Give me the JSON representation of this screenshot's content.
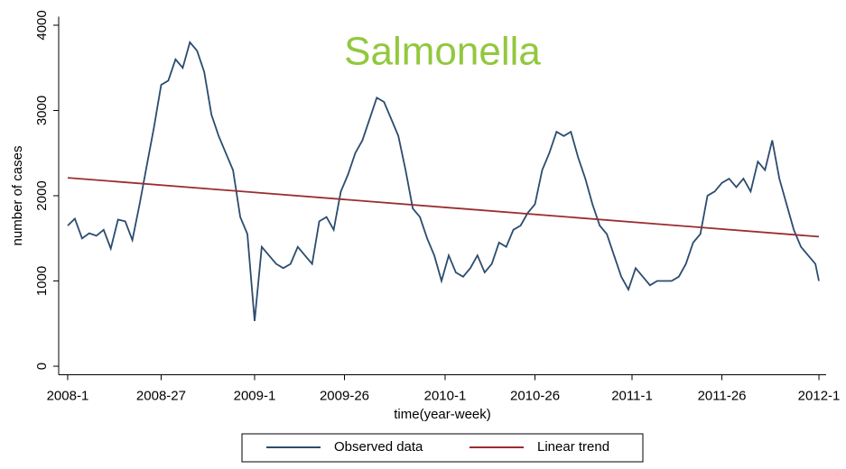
{
  "chart_data": {
    "type": "line",
    "title": "Salmonella",
    "title_color": "#92c83e",
    "xlabel": "time(year-week)",
    "ylabel": "number of cases",
    "xlim": [
      -2.5,
      211
    ],
    "ylim": [
      -100,
      4100
    ],
    "xticks": [
      {
        "value": 0,
        "label": "2008-1"
      },
      {
        "value": 26,
        "label": "2008-27"
      },
      {
        "value": 52,
        "label": "2009-1"
      },
      {
        "value": 77,
        "label": "2009-26"
      },
      {
        "value": 105,
        "label": "2010-1"
      },
      {
        "value": 130,
        "label": "2010-26"
      },
      {
        "value": 157,
        "label": "2011-1"
      },
      {
        "value": 182,
        "label": "2011-26"
      },
      {
        "value": 209,
        "label": "2012-1"
      }
    ],
    "yticks": [
      0,
      1000,
      2000,
      3000,
      4000
    ],
    "legend": "bottom",
    "series": [
      {
        "name": "Observed data",
        "color": "#2b4c6f",
        "x": [
          0,
          2,
          4,
          6,
          8,
          10,
          12,
          14,
          16,
          18,
          20,
          22,
          24,
          26,
          28,
          30,
          32,
          34,
          36,
          38,
          40,
          42,
          44,
          46,
          48,
          50,
          52,
          54,
          56,
          58,
          60,
          62,
          64,
          66,
          68,
          70,
          72,
          74,
          76,
          78,
          80,
          82,
          84,
          86,
          88,
          90,
          92,
          94,
          96,
          98,
          100,
          102,
          104,
          106,
          108,
          110,
          112,
          114,
          116,
          118,
          120,
          122,
          124,
          126,
          128,
          130,
          132,
          134,
          136,
          138,
          140,
          142,
          144,
          146,
          148,
          150,
          152,
          154,
          156,
          158,
          160,
          162,
          164,
          166,
          168,
          170,
          172,
          174,
          176,
          178,
          180,
          182,
          184,
          186,
          188,
          190,
          192,
          194,
          196,
          198,
          200,
          202,
          204,
          206,
          208,
          209
        ],
        "values": [
          1650,
          1730,
          1500,
          1560,
          1530,
          1600,
          1380,
          1720,
          1700,
          1480,
          1900,
          2350,
          2800,
          3300,
          3350,
          3600,
          3500,
          3800,
          3700,
          3450,
          2950,
          2700,
          2500,
          2300,
          1750,
          1550,
          530,
          1400,
          1300,
          1200,
          1150,
          1200,
          1400,
          1300,
          1200,
          1700,
          1750,
          1600,
          2050,
          2250,
          2500,
          2650,
          2900,
          3150,
          3100,
          2900,
          2700,
          2300,
          1850,
          1750,
          1500,
          1300,
          1000,
          1300,
          1100,
          1050,
          1150,
          1300,
          1100,
          1200,
          1450,
          1400,
          1600,
          1650,
          1800,
          1900,
          2300,
          2500,
          2750,
          2700,
          2750,
          2450,
          2200,
          1900,
          1650,
          1550,
          1300,
          1050,
          900,
          1150,
          1050,
          950,
          1000,
          1000,
          1000,
          1050,
          1200,
          1450,
          1550,
          2000,
          2050,
          2150,
          2200,
          2100,
          2200,
          2050,
          2400,
          2300,
          2650,
          2200,
          1900,
          1600,
          1400,
          1300,
          1200,
          1000
        ]
      },
      {
        "name": "Linear trend",
        "color": "#9b2d30",
        "x": [
          0,
          209
        ],
        "values": [
          2210,
          1520
        ]
      }
    ]
  }
}
